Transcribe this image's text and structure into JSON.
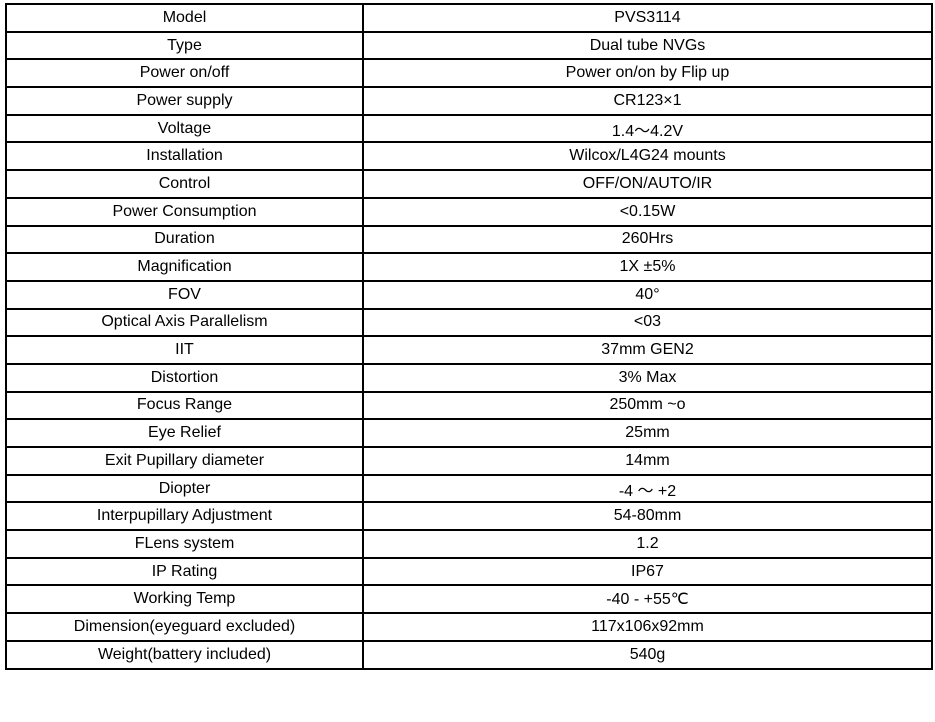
{
  "specs": [
    {
      "label": "Model",
      "value": "PVS3114"
    },
    {
      "label": "Type",
      "value": "Dual tube NVGs"
    },
    {
      "label": "Power on/off",
      "value": "Power on/on by Flip up"
    },
    {
      "label": "Power supply",
      "value": "CR123×1"
    },
    {
      "label": "Voltage",
      "value": "1.4～4.2V"
    },
    {
      "label": "Installation",
      "value": "Wilcox/L4G24 mounts"
    },
    {
      "label": "Control",
      "value": "OFF/ON/AUTO/IR"
    },
    {
      "label": "Power Consumption",
      "value": "<0.15W"
    },
    {
      "label": "Duration",
      "value": "260Hrs"
    },
    {
      "label": "Magnification",
      "value": "1X ±5%"
    },
    {
      "label": "FOV",
      "value": "40°"
    },
    {
      "label": "Optical Axis Parallelism",
      "value": "<03"
    },
    {
      "label": "IIT",
      "value": "37mm GEN2"
    },
    {
      "label": "Distortion",
      "value": "3% Max"
    },
    {
      "label": "Focus Range",
      "value": "250mm ~o"
    },
    {
      "label": "Eye Relief",
      "value": "25mm"
    },
    {
      "label": "Exit Pupillary diameter",
      "value": "14mm"
    },
    {
      "label": "Diopter",
      "value": "-4 ～ +2"
    },
    {
      "label": "Interpupillary Adjustment",
      "value": "54-80mm"
    },
    {
      "label": "FLens system",
      "value": "1.2"
    },
    {
      "label": "IP Rating",
      "value": "IP67"
    },
    {
      "label": "Working Temp",
      "value": "-40 - +55℃"
    },
    {
      "label": "Dimension(eyeguard excluded)",
      "value": "117x106x92mm"
    },
    {
      "label": "Weight(battery included)",
      "value": "540g"
    }
  ]
}
